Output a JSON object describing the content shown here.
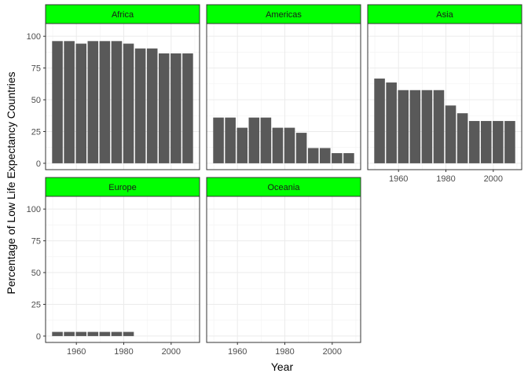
{
  "chart_data": {
    "type": "bar",
    "xlabel": "Year",
    "ylabel": "Percentage of Low Life Expectancy Countries",
    "x": [
      1952,
      1957,
      1962,
      1967,
      1972,
      1977,
      1982,
      1987,
      1992,
      1997,
      2002,
      2007
    ],
    "xlim": [
      1947,
      2012
    ],
    "ylim": [
      -5,
      110
    ],
    "x_ticks": [
      1960,
      1980,
      2000
    ],
    "y_ticks": [
      0,
      25,
      50,
      75,
      100
    ],
    "grid": true,
    "strip_color": "#00ff00",
    "bar_color": "#595959",
    "panels": [
      {
        "name": "Africa",
        "values": [
          96.2,
          96.2,
          94.2,
          96.2,
          96.2,
          96.2,
          94.2,
          90.4,
          90.4,
          86.5,
          86.5,
          86.5
        ]
      },
      {
        "name": "Americas",
        "values": [
          36,
          36,
          28,
          36,
          36,
          28,
          28,
          24,
          12,
          12,
          8,
          8
        ]
      },
      {
        "name": "Asia",
        "values": [
          66.7,
          63.6,
          57.6,
          57.6,
          57.6,
          57.6,
          45.5,
          39.4,
          33.3,
          33.3,
          33.3,
          33.3
        ]
      },
      {
        "name": "Europe",
        "values": [
          3.3,
          3.3,
          3.3,
          3.3,
          3.3,
          3.3,
          3.3,
          0,
          0,
          0,
          0,
          0
        ]
      },
      {
        "name": "Oceania",
        "values": [
          0,
          0,
          0,
          0,
          0,
          0,
          0,
          0,
          0,
          0,
          0,
          0
        ]
      }
    ]
  }
}
